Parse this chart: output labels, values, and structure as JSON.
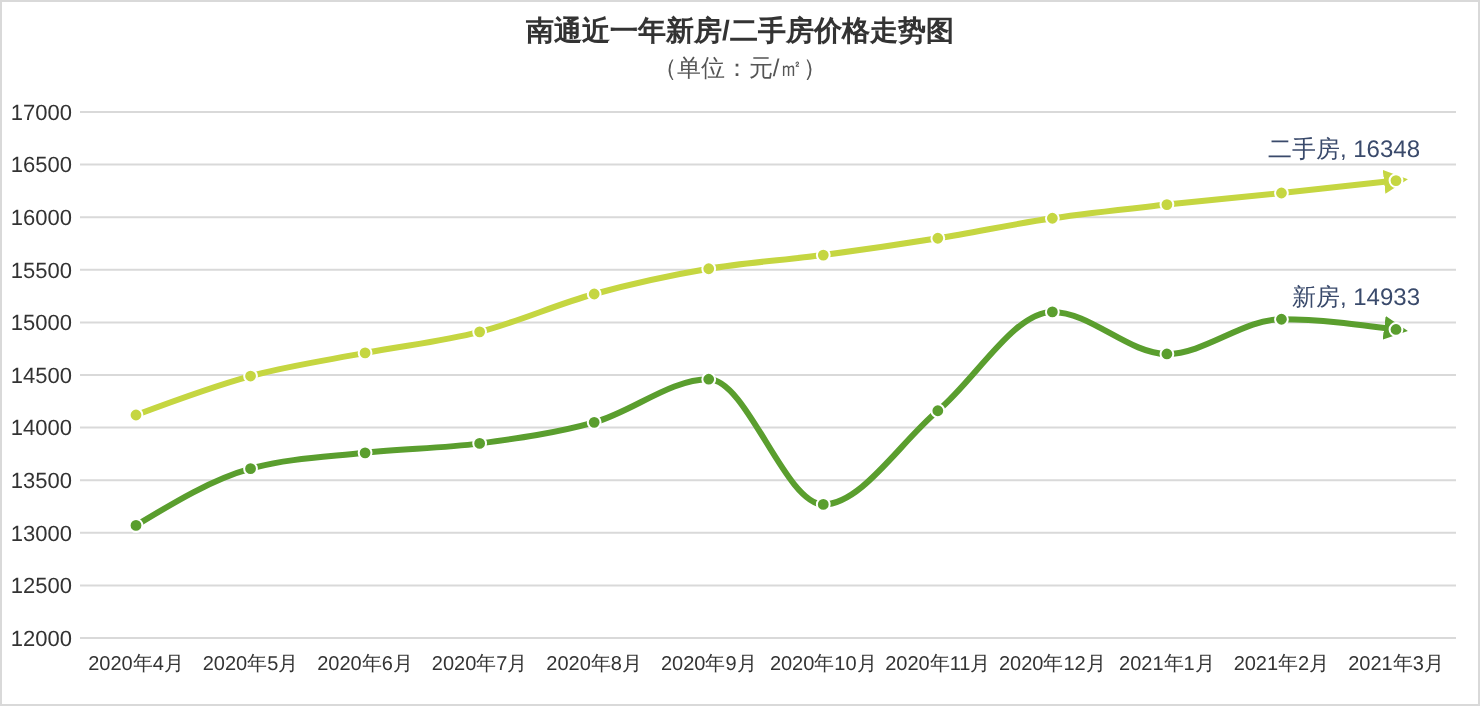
{
  "chart_data": {
    "type": "line",
    "title": "南通近一年新房/二手房价格走势图",
    "subtitle": "（单位：元/㎡）",
    "categories": [
      "2020年4月",
      "2020年5月",
      "2020年6月",
      "2020年7月",
      "2020年8月",
      "2020年9月",
      "2020年10月",
      "2020年11月",
      "2020年12月",
      "2021年1月",
      "2021年2月",
      "2021年3月"
    ],
    "ylim": [
      12000,
      17000
    ],
    "yticks": [
      12000,
      12500,
      13000,
      13500,
      14000,
      14500,
      15000,
      15500,
      16000,
      16500,
      17000
    ],
    "grid": "y",
    "marker": "circle",
    "line_style": "solid",
    "annotations": [
      {
        "text": "二手房, 16348",
        "x": "2021年3月",
        "y": 16348
      },
      {
        "text": "新房, 14933",
        "x": "2021年3月",
        "y": 14933
      }
    ],
    "series": [
      {
        "color": "#c5d641",
        "values": [
          14120,
          14490,
          14710,
          14910,
          15270,
          15510,
          15640,
          15800,
          15990,
          16120,
          16230,
          16348
        ]
      },
      {
        "color": "#5a9e2e",
        "values": [
          13070,
          13610,
          13760,
          13850,
          14050,
          14460,
          13270,
          14160,
          15100,
          14700,
          15030,
          14933
        ]
      }
    ]
  }
}
